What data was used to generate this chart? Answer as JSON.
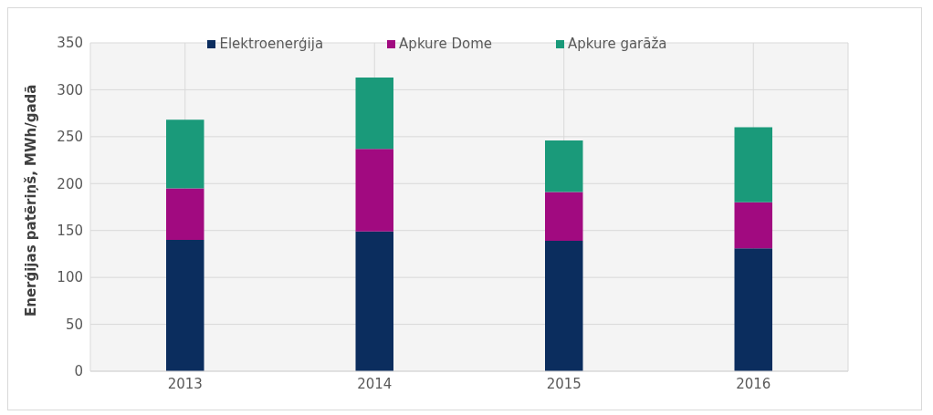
{
  "chart_data": {
    "type": "bar",
    "ylabel": "Enerģijas patēriņš, MWh/gadā",
    "categories": [
      "2013",
      "2014",
      "2015",
      "2016"
    ],
    "series": [
      {
        "name": "Elektroenerģija",
        "color": "#0b2d5e",
        "values": [
          140,
          149,
          139,
          131
        ]
      },
      {
        "name": "Apkure Dome",
        "color": "#a10a80",
        "values": [
          55,
          88,
          52,
          49
        ]
      },
      {
        "name": "Apkure garāža",
        "color": "#1a9a7a",
        "values": [
          73,
          76,
          55,
          80
        ]
      }
    ],
    "stacked": true,
    "ylim": [
      0,
      350
    ],
    "yticks": [
      0,
      50,
      100,
      150,
      200,
      250,
      300,
      350
    ],
    "grid": true,
    "legend": "top"
  }
}
